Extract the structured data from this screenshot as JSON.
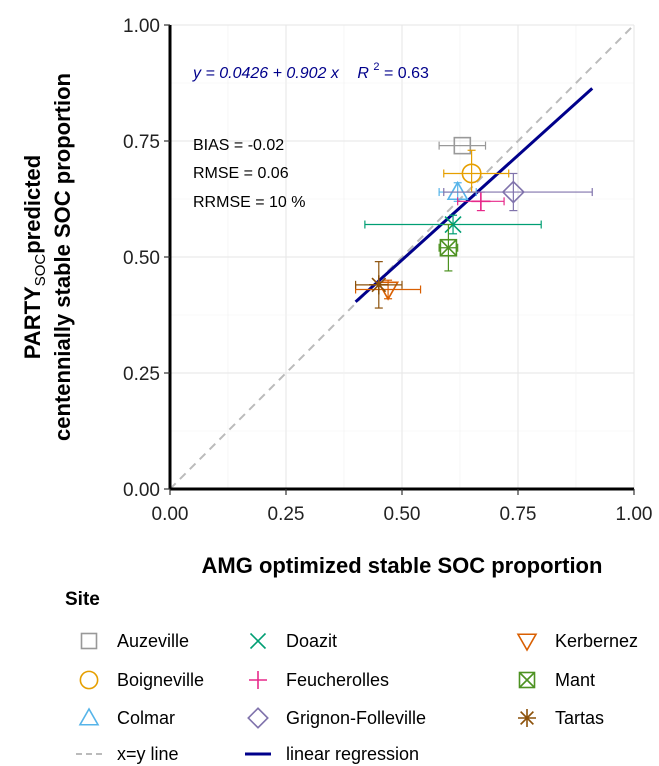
{
  "chart_data": {
    "type": "scatter",
    "xlabel": "AMG optimized stable SOC proportion",
    "ylabel_line1_main": "PARTY",
    "ylabel_line1_sub": "SOC",
    "ylabel_line1_rest": "predicted",
    "ylabel_line2": "centennially stable SOC proportion",
    "xlim": [
      0,
      1
    ],
    "ylim": [
      0,
      1
    ],
    "xticks": [
      "0.00",
      "0.25",
      "0.50",
      "0.75",
      "1.00"
    ],
    "yticks": [
      "0.00",
      "0.25",
      "0.50",
      "0.75",
      "1.00"
    ],
    "grid": true,
    "equation": {
      "text": "y = 0.0426 + 0.902 x",
      "r2_prefix": "R",
      "r2_sup": "2",
      "r2_value": " = 0.63"
    },
    "stats": [
      "BIAS = -0.02",
      "RMSE = 0.06",
      "RRMSE = 10 %"
    ],
    "regression": {
      "intercept": 0.0426,
      "slope": 0.902,
      "x_range": [
        0.4,
        0.91
      ],
      "color": "#00008b"
    },
    "identity_line": {
      "color": "#bbbbbb"
    },
    "points": [
      {
        "site": "Auzeville",
        "x": 0.63,
        "y": 0.74,
        "xerr": [
          0.58,
          0.68
        ],
        "yerr": [
          0.74,
          0.74
        ],
        "shape": "square",
        "color": "#999999"
      },
      {
        "site": "Boigneville",
        "x": 0.65,
        "y": 0.68,
        "xerr": [
          0.59,
          0.73
        ],
        "yerr": [
          0.64,
          0.73
        ],
        "shape": "circle",
        "color": "#e69f00"
      },
      {
        "site": "Colmar",
        "x": 0.62,
        "y": 0.64,
        "xerr": [
          0.58,
          0.66
        ],
        "yerr": [
          0.62,
          0.66
        ],
        "shape": "triangle-up",
        "color": "#56b4e9"
      },
      {
        "site": "Doazit",
        "x": 0.61,
        "y": 0.57,
        "xerr": [
          0.42,
          0.8
        ],
        "yerr": [
          0.55,
          0.59
        ],
        "shape": "x",
        "color": "#009e73"
      },
      {
        "site": "Feucherolles",
        "x": 0.67,
        "y": 0.62,
        "xerr": [
          0.62,
          0.72
        ],
        "yerr": [
          0.6,
          0.64
        ],
        "shape": "plus",
        "color": "#e7298a"
      },
      {
        "site": "Grignon-Folleville",
        "x": 0.74,
        "y": 0.64,
        "xerr": [
          0.59,
          0.91
        ],
        "yerr": [
          0.6,
          0.68
        ],
        "shape": "diamond",
        "color": "#8073ac"
      },
      {
        "site": "Kerbernez",
        "x": 0.47,
        "y": 0.43,
        "xerr": [
          0.4,
          0.54
        ],
        "yerr": [
          0.41,
          0.45
        ],
        "shape": "triangle-down",
        "color": "#d95f02"
      },
      {
        "site": "Mant",
        "x": 0.6,
        "y": 0.52,
        "xerr": [
          0.58,
          0.62
        ],
        "yerr": [
          0.47,
          0.57
        ],
        "shape": "square-x",
        "color": "#4d9221"
      },
      {
        "site": "Tartas",
        "x": 0.45,
        "y": 0.44,
        "xerr": [
          0.4,
          0.5
        ],
        "yerr": [
          0.39,
          0.49
        ],
        "shape": "asterisk",
        "color": "#8c510a"
      }
    ],
    "legend": {
      "title": "Site",
      "placement": "bottom",
      "items": [
        {
          "label": "Auzeville",
          "shape": "square",
          "color": "#999999"
        },
        {
          "label": "Boigneville",
          "shape": "circle",
          "color": "#e69f00"
        },
        {
          "label": "Colmar",
          "shape": "triangle-up",
          "color": "#56b4e9"
        },
        {
          "label": "Doazit",
          "shape": "x",
          "color": "#009e73"
        },
        {
          "label": "Feucherolles",
          "shape": "plus",
          "color": "#e7298a"
        },
        {
          "label": "Grignon-Folleville",
          "shape": "diamond",
          "color": "#8073ac"
        },
        {
          "label": "Kerbernez",
          "shape": "triangle-down",
          "color": "#d95f02"
        },
        {
          "label": "Mant",
          "shape": "square-x",
          "color": "#4d9221"
        },
        {
          "label": "Tartas",
          "shape": "asterisk",
          "color": "#8c510a"
        },
        {
          "label": "x=y line",
          "shape": "dashed-line",
          "color": "#bbbbbb"
        },
        {
          "label": "linear regression",
          "shape": "solid-line",
          "color": "#00008b"
        }
      ]
    }
  }
}
